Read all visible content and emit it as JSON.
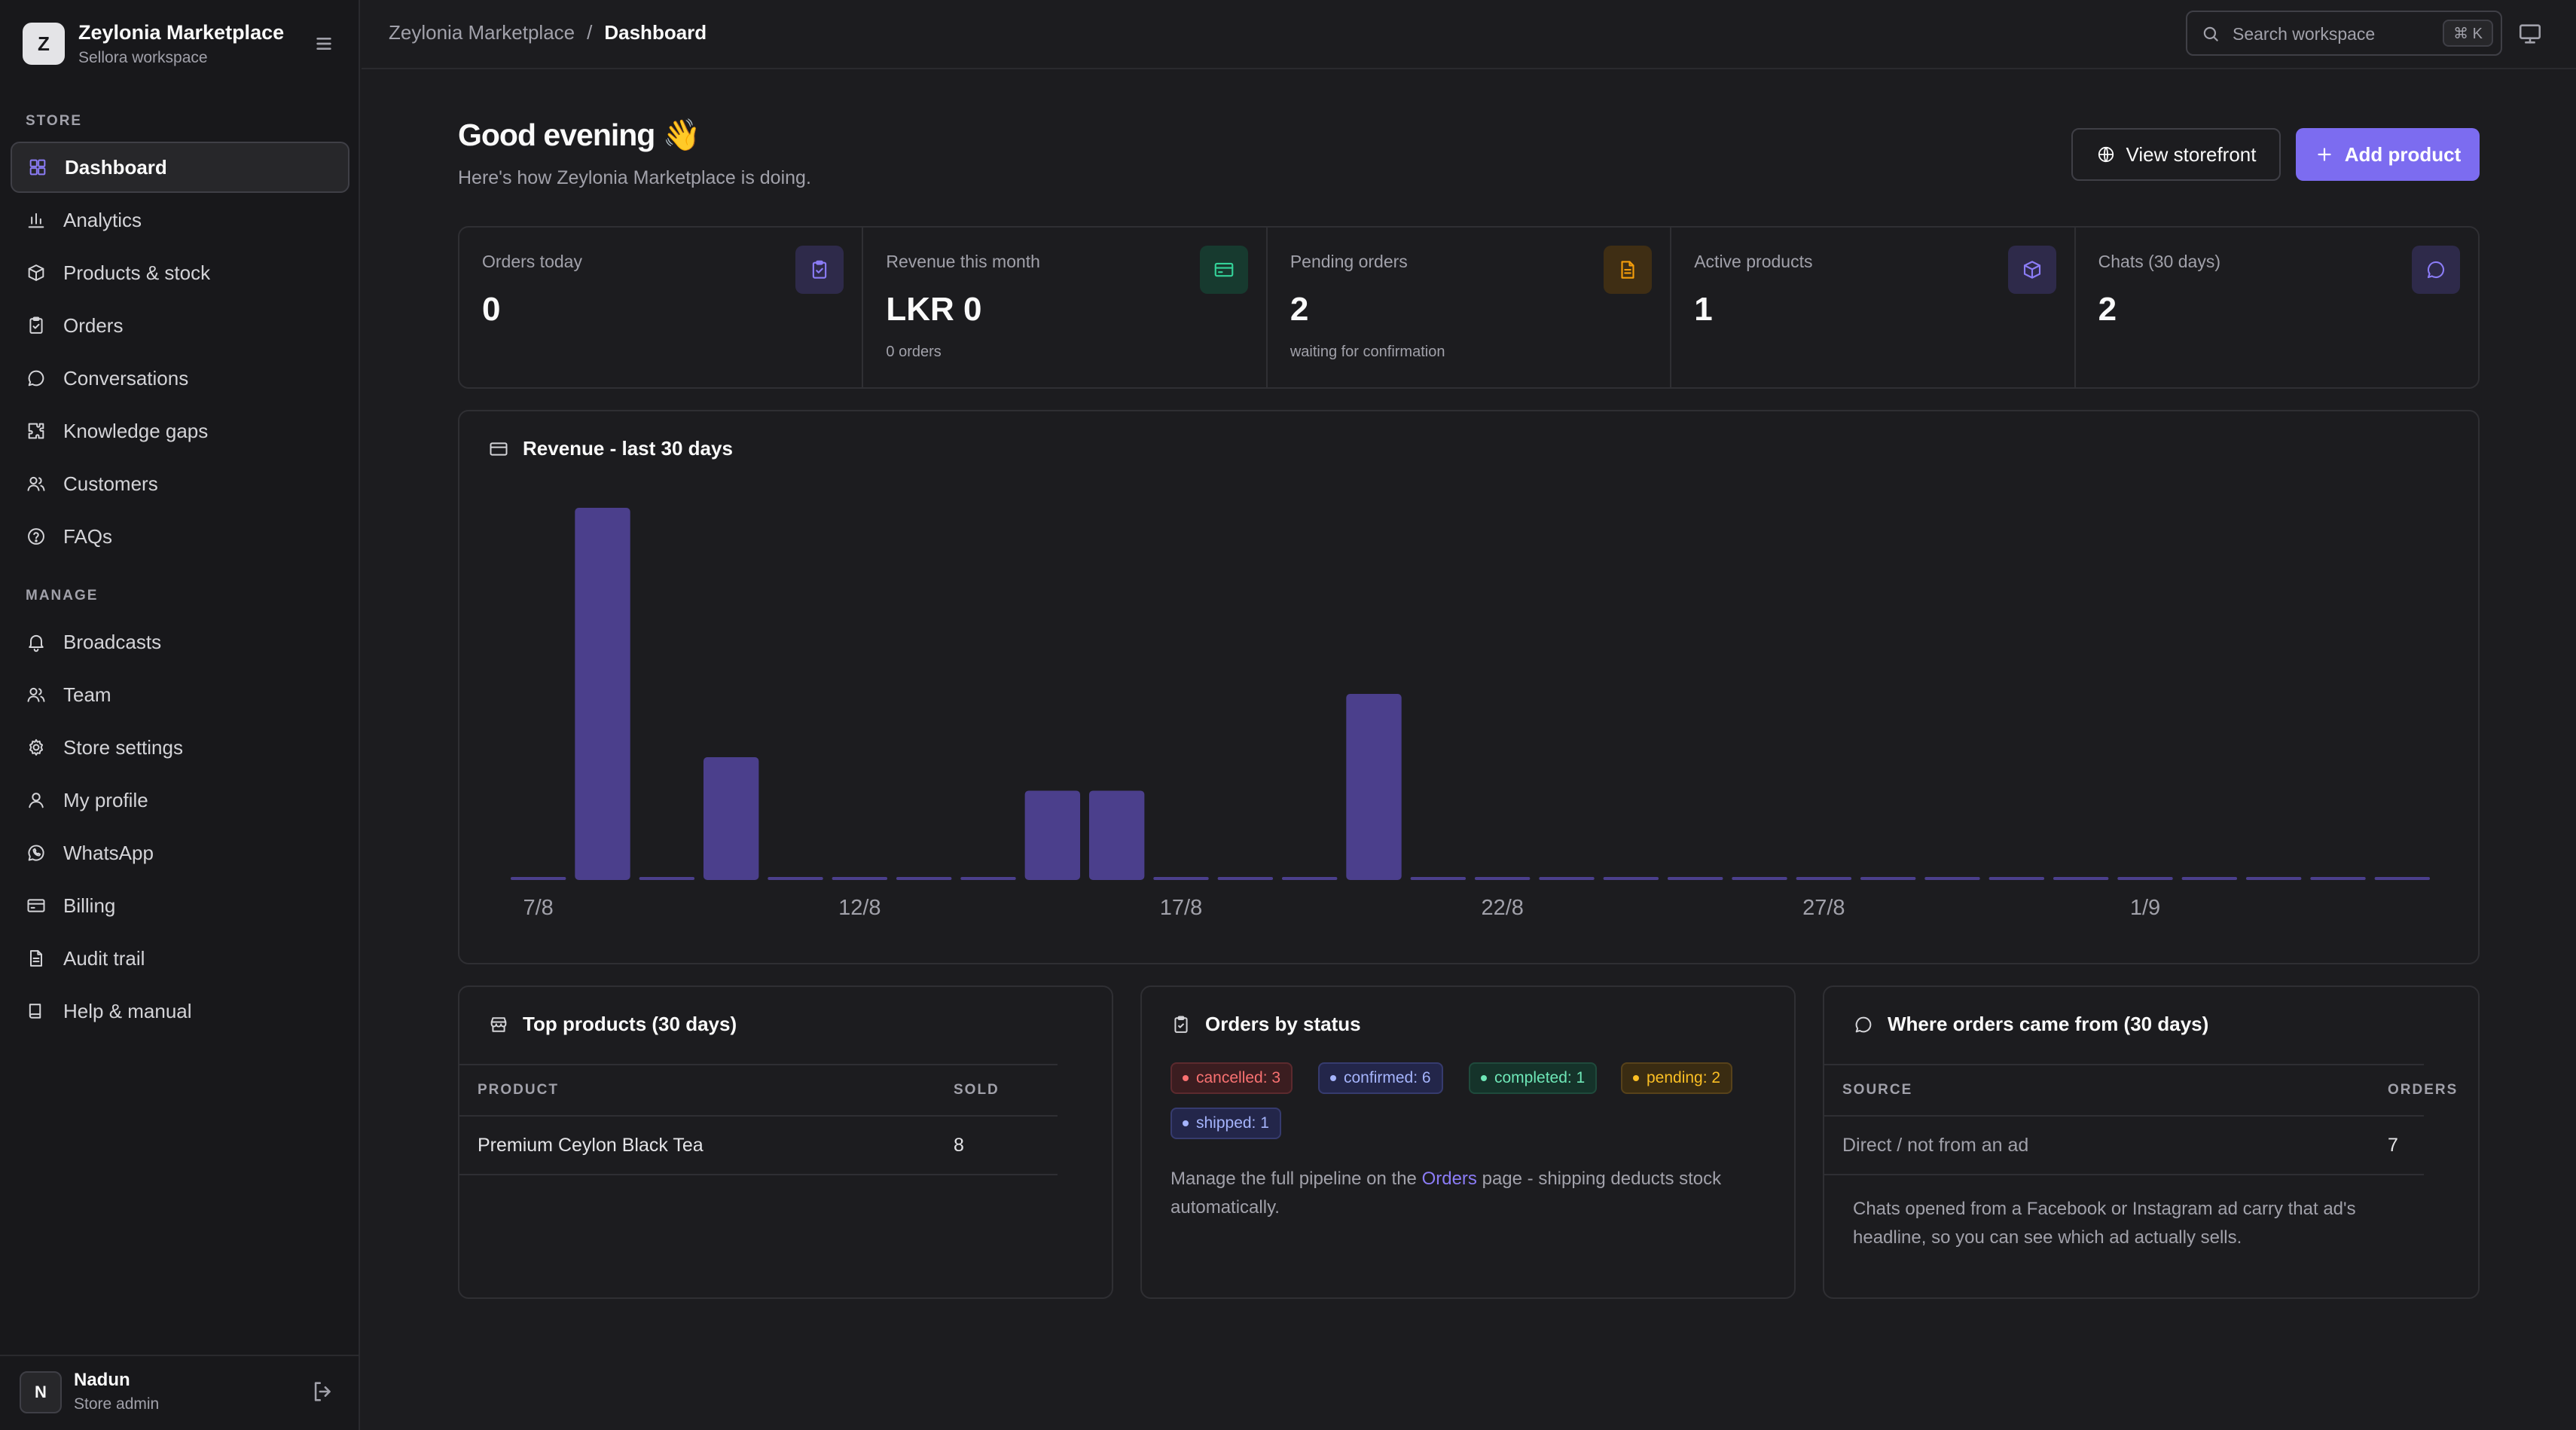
{
  "brand": {
    "initial": "Z",
    "name": "Zeylonia Marketplace",
    "workspace": "Sellora workspace"
  },
  "sidebar": {
    "sections": [
      {
        "title": "STORE",
        "items": [
          {
            "label": "Dashboard",
            "icon": "dashboard-icon",
            "active": true
          },
          {
            "label": "Analytics",
            "icon": "bar-chart-icon"
          },
          {
            "label": "Products & stock",
            "icon": "box-icon"
          },
          {
            "label": "Orders",
            "icon": "clipboard-icon"
          },
          {
            "label": "Conversations",
            "icon": "chat-icon"
          },
          {
            "label": "Knowledge gaps",
            "icon": "puzzle-icon"
          },
          {
            "label": "Customers",
            "icon": "users-icon"
          },
          {
            "label": "FAQs",
            "icon": "help-circle-icon"
          }
        ]
      },
      {
        "title": "MANAGE",
        "items": [
          {
            "label": "Broadcasts",
            "icon": "bell-icon"
          },
          {
            "label": "Team",
            "icon": "users-icon"
          },
          {
            "label": "Store settings",
            "icon": "gear-icon"
          },
          {
            "label": "My profile",
            "icon": "user-icon"
          },
          {
            "label": "WhatsApp",
            "icon": "whatsapp-icon"
          },
          {
            "label": "Billing",
            "icon": "credit-card-icon"
          },
          {
            "label": "Audit trail",
            "icon": "document-icon"
          },
          {
            "label": "Help & manual",
            "icon": "book-icon"
          }
        ]
      }
    ]
  },
  "user": {
    "initial": "N",
    "name": "Nadun",
    "role": "Store admin"
  },
  "topbar": {
    "breadcrumb_root": "Zeylonia Marketplace",
    "breadcrumb_sep": "/",
    "breadcrumb_current": "Dashboard",
    "search_placeholder": "Search workspace",
    "search_shortcut": "⌘ K"
  },
  "header": {
    "greeting": "Good evening 👋",
    "subtitle": "Here's how Zeylonia Marketplace is doing.",
    "view_storefront": "View storefront",
    "add_product": "Add product"
  },
  "stats": [
    {
      "label": "Orders today",
      "value": "0",
      "sub": "",
      "icon": "clipboard-icon",
      "accent": "#8b7cf6",
      "bg": "#2e2a4a"
    },
    {
      "label": "Revenue this month",
      "value": "LKR 0",
      "sub": "0 orders",
      "icon": "credit-card-icon",
      "accent": "#34d399",
      "bg": "#173a2f"
    },
    {
      "label": "Pending orders",
      "value": "2",
      "sub": "waiting for confirmation",
      "icon": "document-icon",
      "accent": "#f59e0b",
      "bg": "#3f2e14"
    },
    {
      "label": "Active products",
      "value": "1",
      "sub": "",
      "icon": "box-icon",
      "accent": "#8b7cf6",
      "bg": "#2e2a4a"
    },
    {
      "label": "Chats (30 days)",
      "value": "2",
      "sub": "",
      "icon": "chat-icon",
      "accent": "#8b7cf6",
      "bg": "#2e2a4a"
    }
  ],
  "revenue_card": {
    "title": "Revenue - last 30 days"
  },
  "chart_data": {
    "type": "bar",
    "title": "Revenue - last 30 days",
    "categories": [
      "7/8",
      "8/8",
      "9/8",
      "10/8",
      "11/8",
      "12/8",
      "13/8",
      "14/8",
      "15/8",
      "16/8",
      "17/8",
      "18/8",
      "19/8",
      "20/8",
      "21/8",
      "22/8",
      "23/8",
      "24/8",
      "25/8",
      "26/8",
      "27/8",
      "28/8",
      "29/8",
      "30/8",
      "31/8",
      "1/9",
      "2/9",
      "3/9",
      "4/9",
      "5/9"
    ],
    "x_tick_labels": [
      "7/8",
      "12/8",
      "17/8",
      "22/8",
      "27/8",
      "1/9"
    ],
    "values": [
      0,
      100,
      0,
      33,
      0,
      0,
      0,
      0,
      24,
      24,
      0,
      0,
      0,
      50,
      0,
      0,
      0,
      0,
      0,
      0,
      0,
      0,
      0,
      0,
      0,
      0,
      0,
      0,
      0,
      0
    ],
    "value_scale": "relative (no y-axis shown)",
    "ylim": [
      0,
      100
    ],
    "grid": false,
    "legend": "none",
    "bar_color": "#4b3f8c"
  },
  "top_products": {
    "title": "Top products (30 days)",
    "columns": [
      "PRODUCT",
      "SOLD"
    ],
    "rows": [
      {
        "product": "Premium Ceylon Black Tea",
        "sold": "8"
      }
    ]
  },
  "orders_status": {
    "title": "Orders by status",
    "badges": [
      {
        "label": "cancelled: 3",
        "color": "#f87171",
        "bg": "#3b1d20",
        "border": "#5c2a2e"
      },
      {
        "label": "confirmed: 6",
        "color": "#a5b4fc",
        "bg": "#23264a",
        "border": "#363b6e"
      },
      {
        "label": "completed: 1",
        "color": "#6ee7b7",
        "bg": "#15332a",
        "border": "#1f4a3c"
      },
      {
        "label": "pending: 2",
        "color": "#fbbf24",
        "bg": "#3a2c12",
        "border": "#57421a"
      },
      {
        "label": "shipped: 1",
        "color": "#a5b4fc",
        "bg": "#23264a",
        "border": "#363b6e"
      }
    ],
    "note_before": "Manage the full pipeline on the ",
    "note_link": "Orders",
    "note_after": " page - shipping deducts stock automatically."
  },
  "order_sources": {
    "title": "Where orders came from (30 days)",
    "columns": [
      "SOURCE",
      "ORDERS"
    ],
    "rows": [
      {
        "source": "Direct / not from an ad",
        "orders": "7"
      }
    ],
    "note": "Chats opened from a Facebook or Instagram ad carry that ad's headline, so you can see which ad actually sells."
  }
}
